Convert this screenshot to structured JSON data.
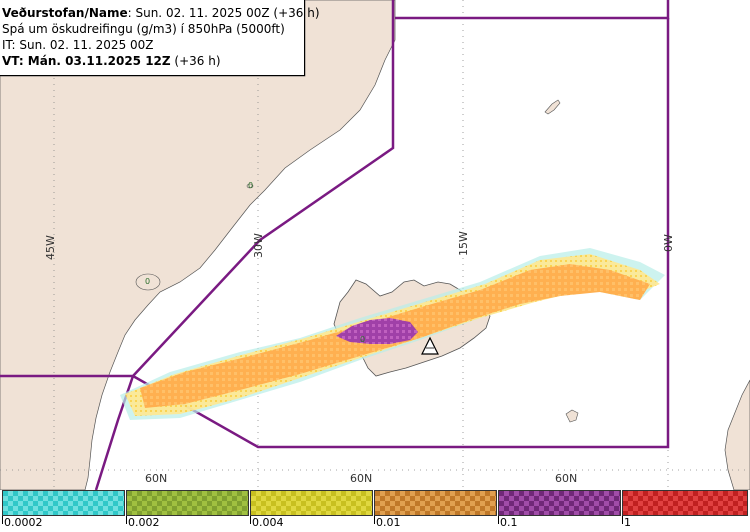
{
  "header": {
    "line1_label": "Veðurstofan/Name",
    "line1_value": ": Sun. 02. 11. 2025 00Z (+36 h)",
    "line2": "Spá um öskudreifingu (g/m3) í 850hPa (5000ft)",
    "line3": "IT: Sun. 02. 11. 2025 00Z",
    "line4_label": "VT: Mán. 03.11.2025 12Z",
    "line4_value": " (+36 h)"
  },
  "map": {
    "longitude_labels": [
      "45W",
      "30W",
      "15W",
      "0W"
    ],
    "latitude_labels": [
      "60N",
      "60N",
      "60N"
    ],
    "colors": {
      "land": "#f0e2d6",
      "sea": "#ffffff",
      "boundary": "#7a1a82",
      "grid": "#888888",
      "ash_low": "#80e0d8",
      "ash_yellow": "#ffe060",
      "ash_orange": "#ffb050",
      "ash_purple": "#a040a8"
    },
    "volcano_icon": "volcano-triangle-icon",
    "contour_marks": [
      "0",
      "0",
      "0"
    ]
  },
  "legend": {
    "bins": [
      {
        "color": "#30c8c8",
        "color2": "#70e0e0"
      },
      {
        "color": "#80a030",
        "color2": "#a0c040"
      },
      {
        "color": "#c8c020",
        "color2": "#e0d840"
      },
      {
        "color": "#c07828",
        "color2": "#e0a050"
      },
      {
        "color": "#702878",
        "color2": "#a04ca8"
      },
      {
        "color": "#c02020",
        "color2": "#e04040"
      }
    ],
    "tick_labels": [
      "0.0002",
      "0.002",
      "0.004",
      "0.01",
      "0.1",
      "1"
    ]
  }
}
